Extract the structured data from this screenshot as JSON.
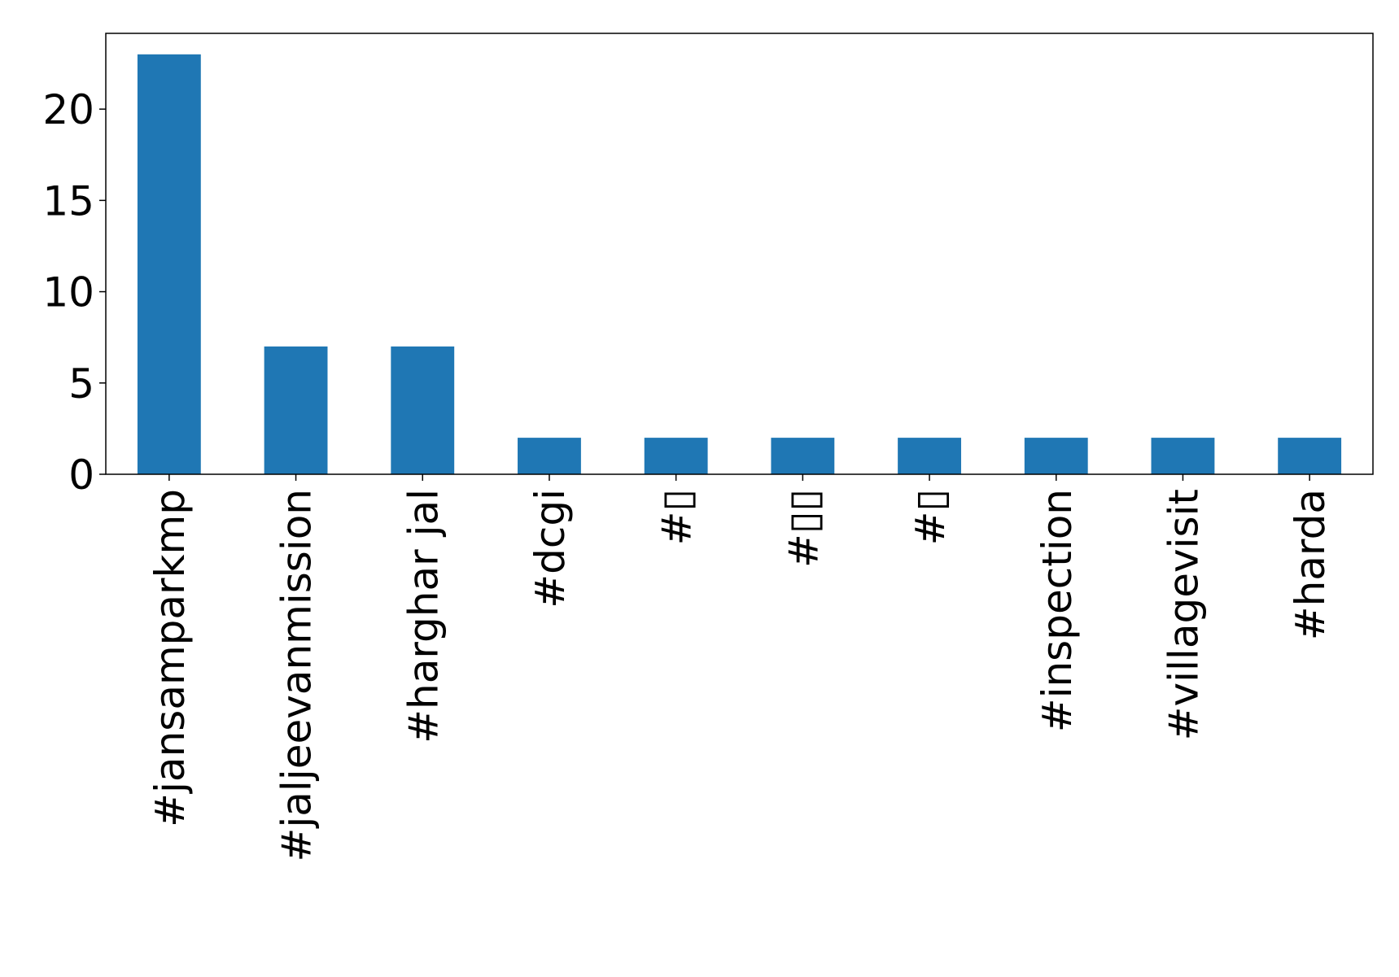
{
  "chart_data": {
    "type": "bar",
    "categories": [
      "#jansamparkmp",
      "#jaljeevanmission",
      "#harghar jal",
      "#dcgi",
      "#▯",
      "#▯▯",
      "#▯",
      "#inspection",
      "#villagevisit",
      "#harda"
    ],
    "values": [
      23,
      7,
      7,
      2,
      2,
      2,
      2,
      2,
      2,
      2
    ],
    "ylim": [
      0,
      24.15
    ],
    "yticks": [
      0,
      5,
      10,
      15,
      20
    ],
    "title": "",
    "xlabel": "",
    "ylabel": "",
    "colors": {
      "bar": "#1f77b4",
      "axis": "#000000",
      "background": "#ffffff"
    },
    "grid": false,
    "legend": "none"
  }
}
